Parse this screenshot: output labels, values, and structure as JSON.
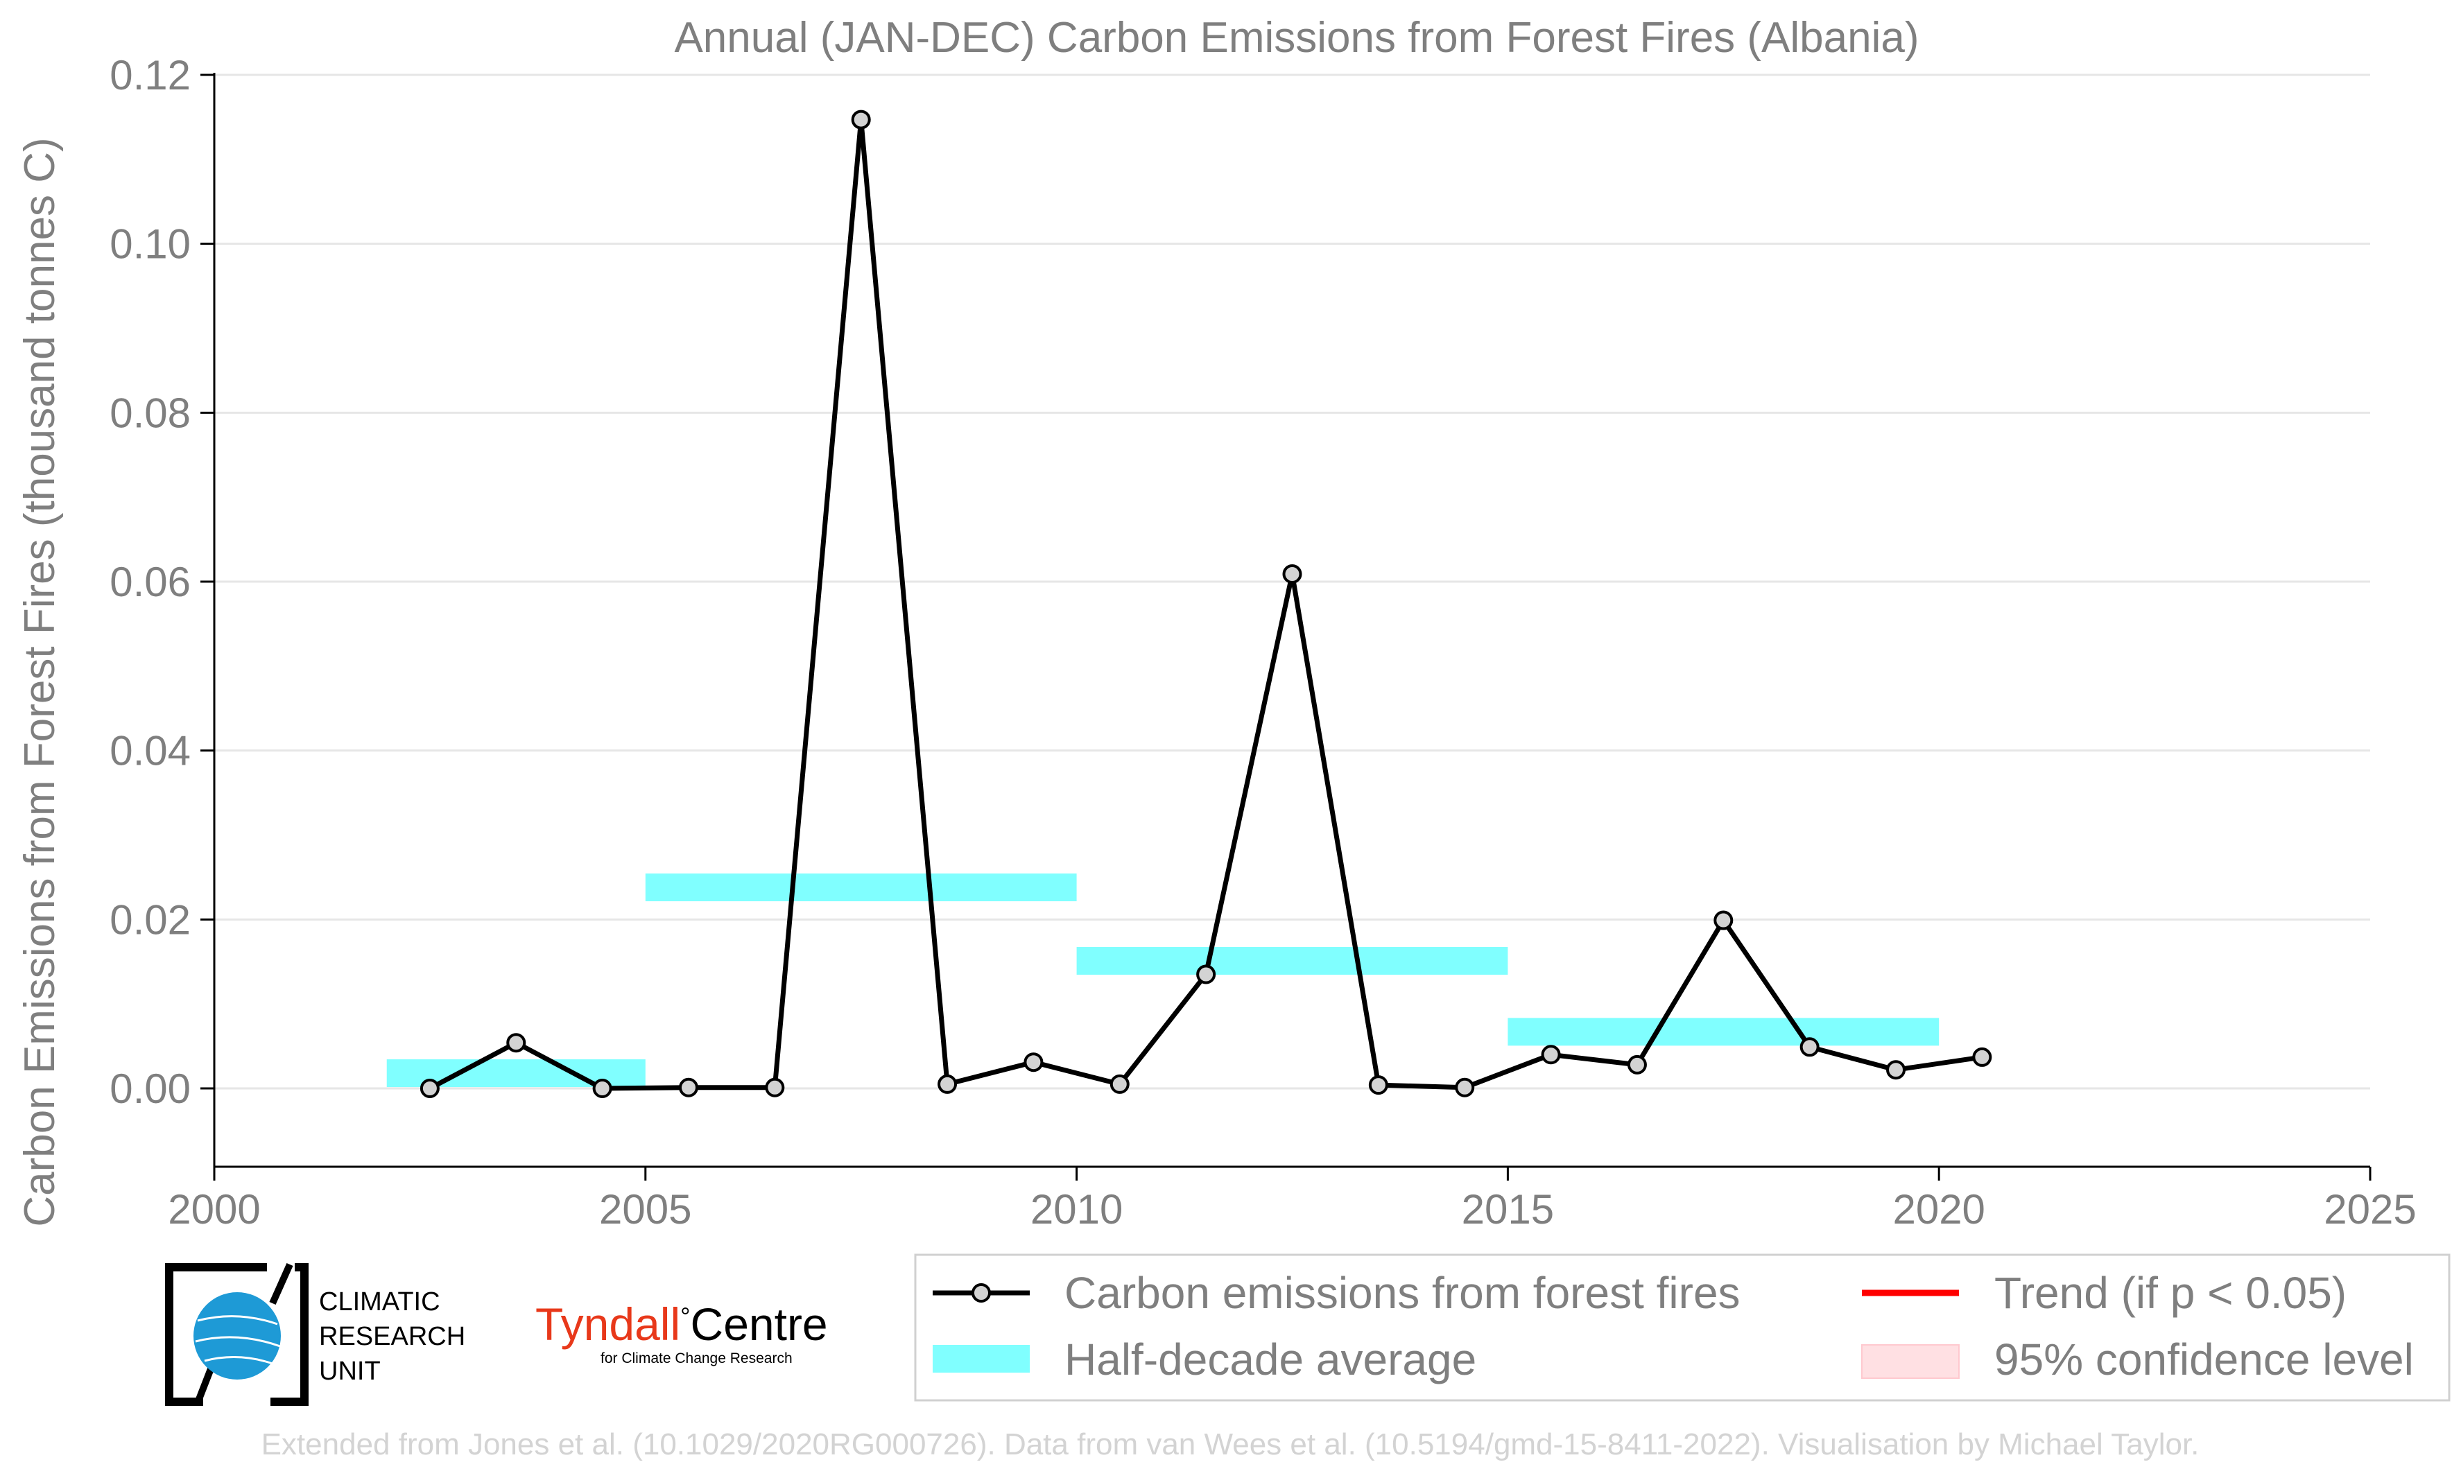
{
  "chart_data": {
    "type": "line",
    "title": "Annual (JAN-DEC) Carbon Emissions from Forest Fires (Albania)",
    "xlabel": "",
    "ylabel": "Carbon Emissions from Forest Fires (thousand tonnes C)",
    "xlim": [
      2000,
      2025
    ],
    "ylim": [
      -0.0095,
      0.12
    ],
    "x_ticks": [
      "2000",
      "2005",
      "2010",
      "2015",
      "2020",
      "2025"
    ],
    "y_ticks": [
      "0.00",
      "0.02",
      "0.04",
      "0.06",
      "0.08",
      "0.10",
      "0.12"
    ],
    "grid": "horizontal",
    "legend_position": "bottom-right",
    "series": [
      {
        "name": "Carbon emissions from forest fires",
        "color": "#000000",
        "marker_fill": "#d3d3d3",
        "x": [
          2002.5,
          2003.5,
          2004.5,
          2005.5,
          2006.5,
          2007.5,
          2008.5,
          2009.5,
          2010.5,
          2011.5,
          2012.5,
          2013.5,
          2014.5,
          2015.5,
          2016.5,
          2017.5,
          2018.5,
          2019.5,
          2020.5
        ],
        "values": [
          0.0,
          0.0054,
          0.0,
          0.0001,
          0.0001,
          0.1147,
          0.0005,
          0.0031,
          0.0005,
          0.0135,
          0.0609,
          0.0004,
          0.0001,
          0.004,
          0.0028,
          0.0199,
          0.0049,
          0.0022,
          0.0037
        ]
      },
      {
        "name": "Half-decade average",
        "color": "#80ffff",
        "periods": [
          {
            "start": 2002,
            "end": 2005,
            "value": 0.0018
          },
          {
            "start": 2005,
            "end": 2010,
            "value": 0.0238
          },
          {
            "start": 2010,
            "end": 2015,
            "value": 0.0151
          },
          {
            "start": 2015,
            "end": 2020,
            "value": 0.0067
          }
        ]
      }
    ],
    "legend": [
      {
        "label": "Carbon emissions from forest fires",
        "kind": "line-marker",
        "color": "#000000"
      },
      {
        "label": "Trend (if p < 0.05)",
        "kind": "line",
        "color": "#ff0000"
      },
      {
        "label": "Half-decade average",
        "kind": "band",
        "color": "#80ffff"
      },
      {
        "label": "95% confidence level",
        "kind": "patch",
        "color": "#ffe0e3"
      }
    ]
  },
  "logos": {
    "cru": [
      "CLIMATIC",
      "RESEARCH",
      "UNIT"
    ],
    "tyndall_main": "Tyndall",
    "tyndall_degree": "°",
    "tyndall_centre": "Centre",
    "tyndall_sub": "for Climate Change Research"
  },
  "credit": "Extended from Jones et al. (10.1029/2020RG000726). Data from van Wees et al. (10.5194/gmd-15-8411-2022). Visualisation by Michael Taylor."
}
